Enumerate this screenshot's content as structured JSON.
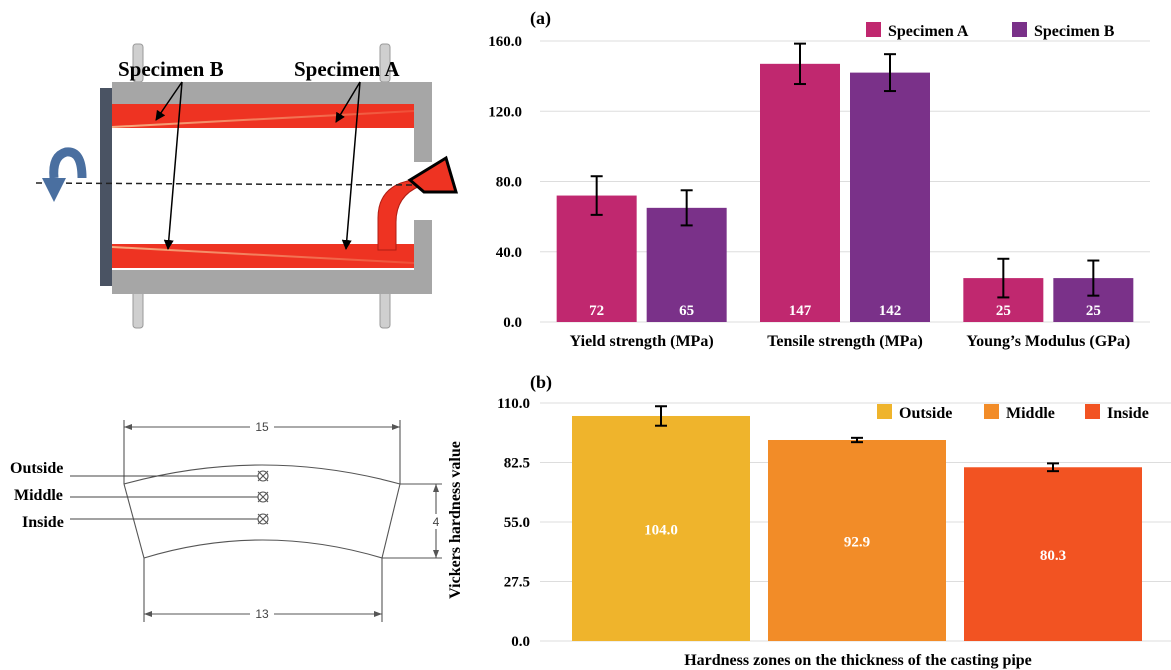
{
  "schematic": {
    "label_specimen_b": "Specimen B",
    "label_specimen_a": "Specimen A"
  },
  "cross_section": {
    "labels": [
      "Outside",
      "Middle",
      "Inside"
    ],
    "dim_top": "15",
    "dim_bottom": "13",
    "dim_right": "4"
  },
  "colors": {
    "specimen_a": "#c0286f",
    "specimen_b": "#7a3189",
    "outside": "#efb42c",
    "middle": "#f28c28",
    "inside": "#f25322",
    "pipe_red": "#ee3322",
    "steel": "#a6a6a6",
    "cap": "#4a5363"
  },
  "chart_data": [
    {
      "type": "bar",
      "panel_label": "(a)",
      "categories": [
        "Yield strength (MPa)",
        "Tensile strength (MPa)",
        "Young’s Modulus (GPa)"
      ],
      "series": [
        {
          "name": "Specimen A",
          "values": [
            72,
            147,
            25
          ],
          "errors": [
            11,
            11.5,
            11
          ]
        },
        {
          "name": "Specimen B",
          "values": [
            65,
            142,
            25
          ],
          "errors": [
            10,
            10.5,
            10
          ]
        }
      ],
      "data_labels": [
        [
          "72",
          "147",
          "25"
        ],
        [
          "65",
          "142",
          "25"
        ]
      ],
      "ylim": [
        0,
        160
      ],
      "yticks": [
        "0.0",
        "40.0",
        "80.0",
        "120.0",
        "160.0"
      ],
      "xlabel": "",
      "ylabel": "",
      "grid": true,
      "legend": "top-right"
    },
    {
      "type": "bar",
      "panel_label": "(b)",
      "categories": [
        "Outside",
        "Middle",
        "Inside"
      ],
      "values": [
        104.0,
        92.9,
        80.3
      ],
      "errors": [
        4.5,
        1.0,
        1.8
      ],
      "data_labels": [
        "104.0",
        "92.9",
        "80.3"
      ],
      "ylim": [
        0,
        110
      ],
      "yticks": [
        "0.0",
        "27.5",
        "55.0",
        "82.5",
        "110.0"
      ],
      "xlabel": "Hardness zones on the thickness of the casting pipe",
      "ylabel": "Vickers hardness value",
      "grid": true,
      "legend": "top-right"
    }
  ]
}
